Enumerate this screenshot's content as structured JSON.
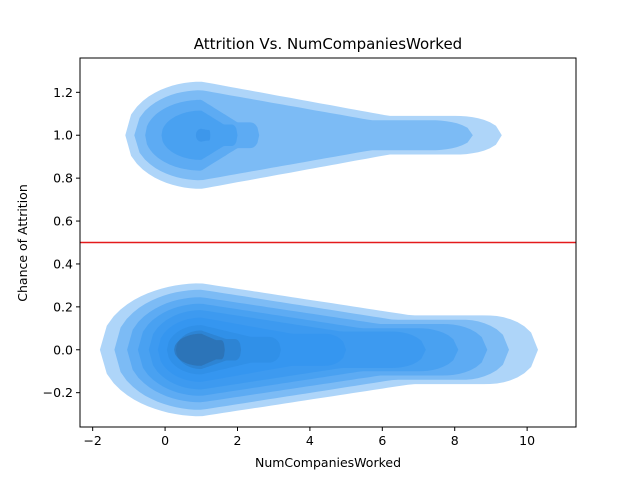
{
  "chart_data": {
    "type": "kde-contour",
    "title": "Attrition Vs. NumCompaniesWorked",
    "xlabel": "NumCompaniesWorked",
    "ylabel": "Chance of Attrition",
    "xlim": [
      -2.35,
      11.35
    ],
    "ylim": [
      -0.36,
      1.36
    ],
    "xticks": [
      -2,
      0,
      2,
      4,
      6,
      8,
      10
    ],
    "yticks": [
      -0.2,
      0.0,
      0.2,
      0.4,
      0.6,
      0.8,
      1.0,
      1.2
    ],
    "ytick_labels": [
      "−0.2",
      "0.0",
      "0.2",
      "0.4",
      "0.6",
      "0.8",
      "1.0",
      "1.2"
    ],
    "grid": false,
    "threshold_line": {
      "y": 0.5,
      "color": "#e41a1c"
    },
    "fill_color": "#2a90ee",
    "groups": [
      {
        "attrition": 0,
        "x_range": [
          -1.8,
          10.3
        ],
        "y_range": [
          -0.29,
          0.31
        ],
        "density_peak": {
          "x": 1.0,
          "y": 0.0
        },
        "contour_levels": 9
      },
      {
        "attrition": 1,
        "x_range": [
          -1.1,
          9.3
        ],
        "y_range": [
          0.75,
          1.25
        ],
        "density_peak": {
          "x": 1.0,
          "y": 1.0
        },
        "contour_levels": 5
      }
    ]
  }
}
